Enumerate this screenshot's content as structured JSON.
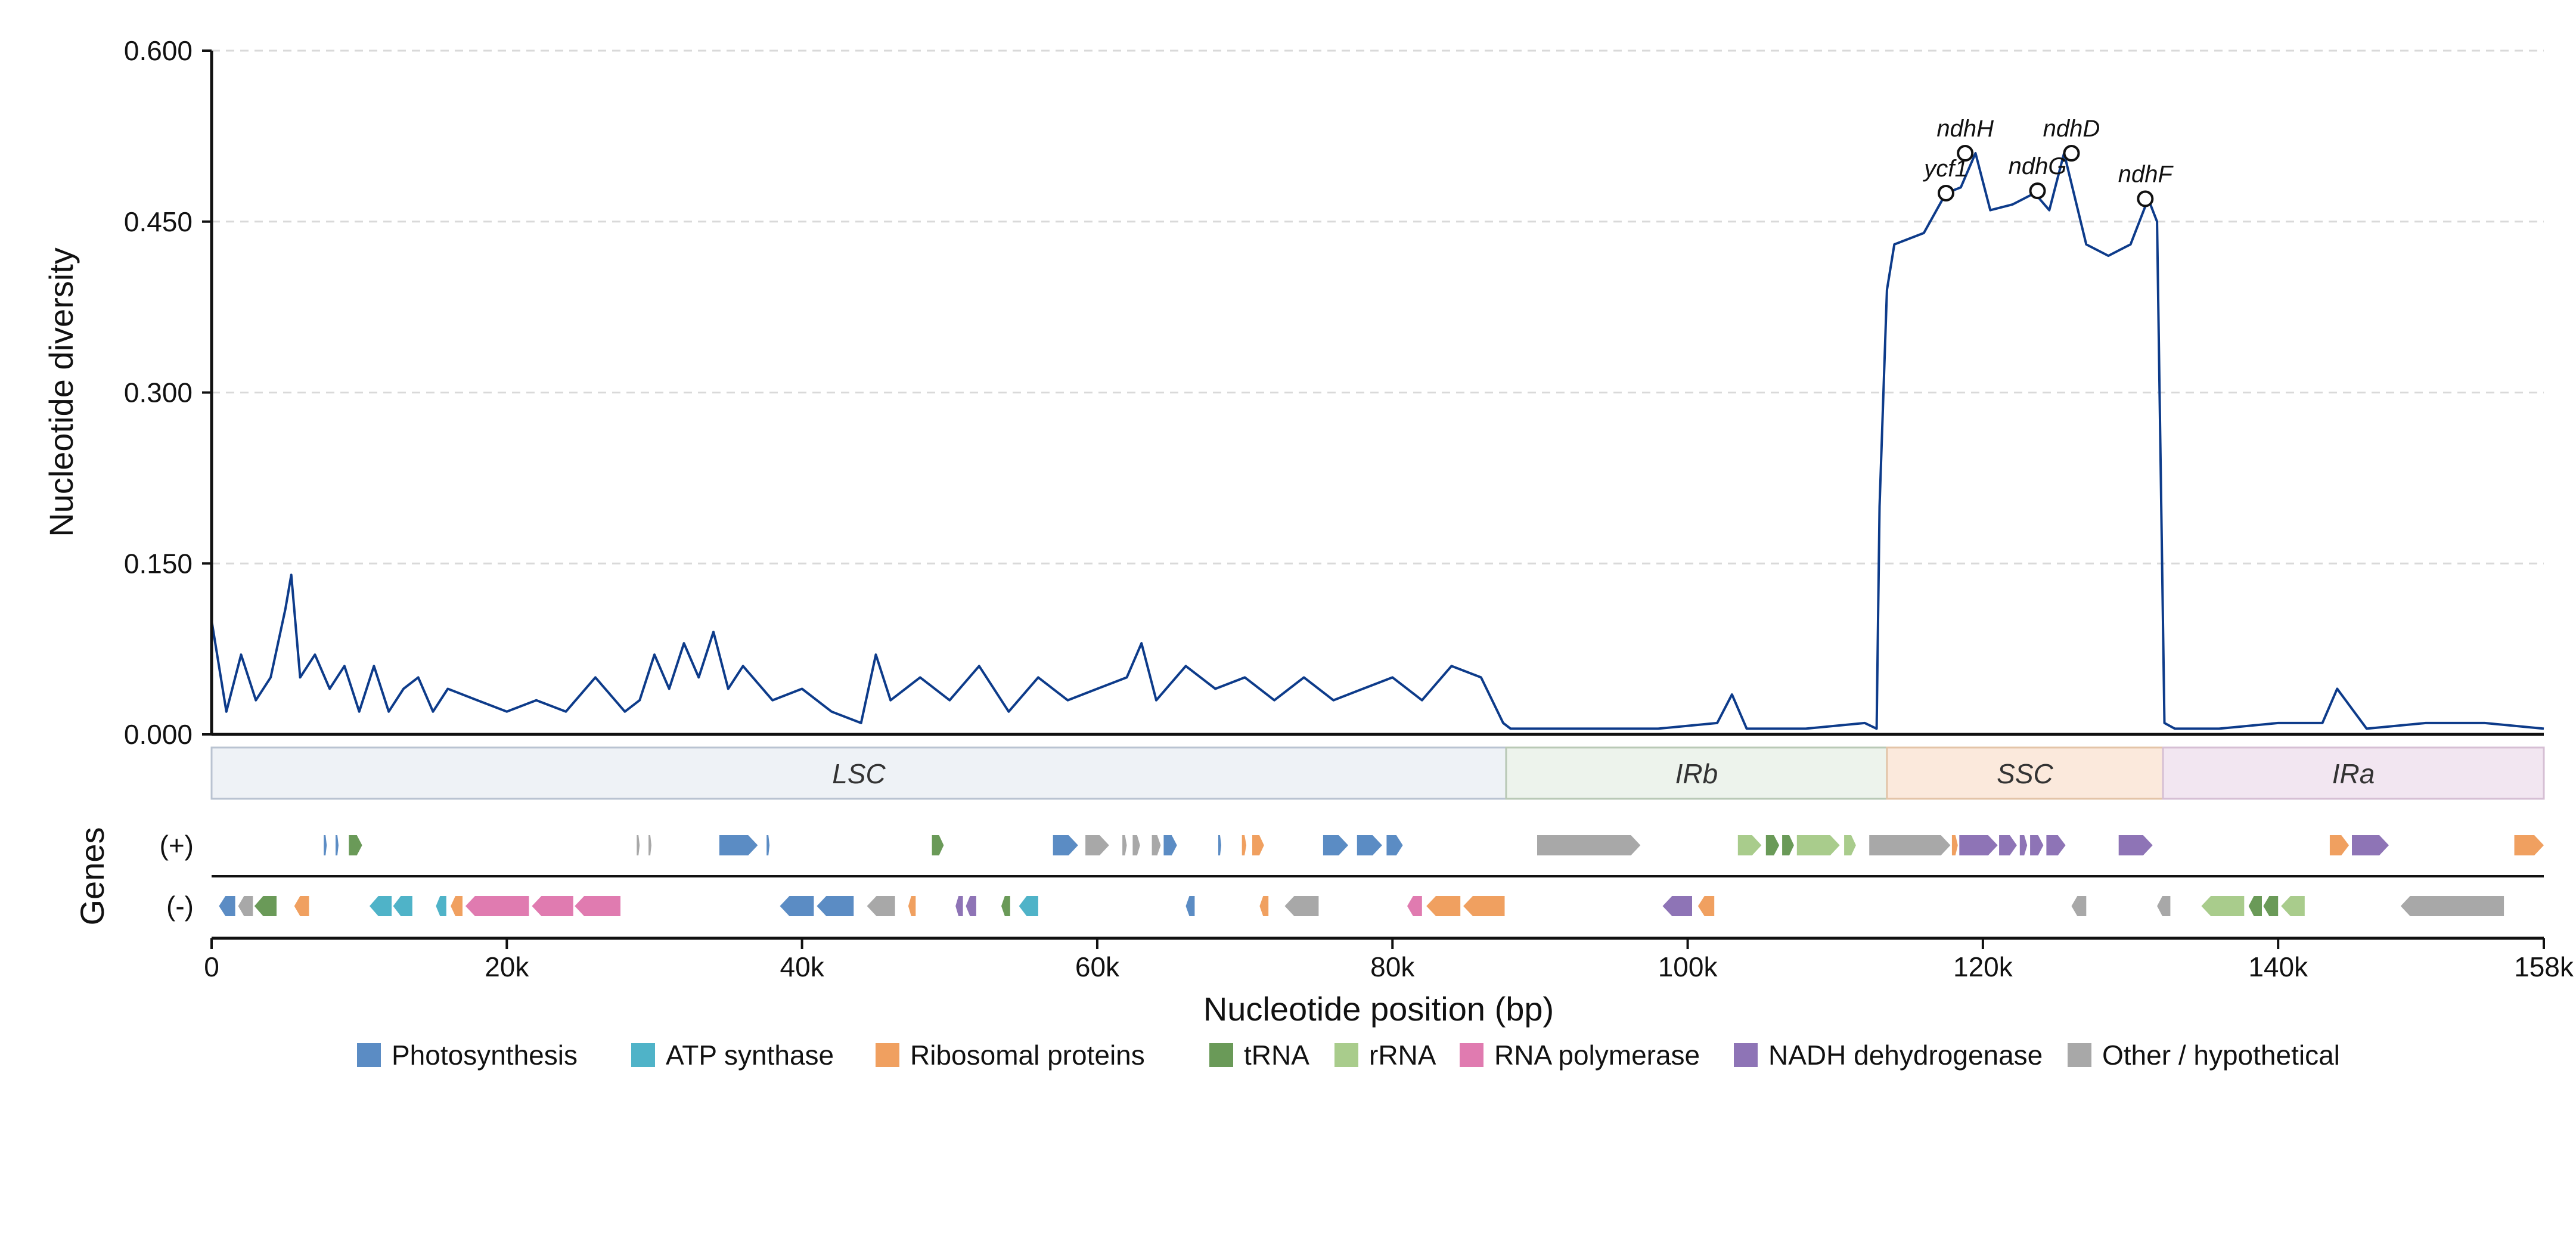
{
  "chart_data": {
    "type": "line",
    "title": "",
    "xlabel": "Nucleotide position (bp)",
    "ylabel": "Nucleotide diversity",
    "genes_label": "Genes",
    "xlim": [
      0,
      158000
    ],
    "ylim": [
      0,
      0.6
    ],
    "grid": true,
    "x_ticks": [
      0,
      20000,
      40000,
      60000,
      80000,
      100000,
      120000,
      140000,
      158000
    ],
    "x_tick_labels": [
      "0",
      "20k",
      "40k",
      "60k",
      "80k",
      "100k",
      "120k",
      "140k",
      "158k"
    ],
    "y_ticks": [
      0,
      0.15,
      0.3,
      0.45,
      0.6
    ],
    "y_tick_labels": [
      "0.000",
      "0.150",
      "0.300",
      "0.450",
      "0.600"
    ],
    "line_color": "#0d3b8a",
    "series": [
      {
        "name": "",
        "x": [
          0,
          1000,
          2000,
          3000,
          4000,
          5000,
          5400,
          6000,
          7000,
          8000,
          9000,
          10000,
          11000,
          12000,
          13000,
          14000,
          15000,
          16000,
          18000,
          20000,
          22000,
          24000,
          26000,
          28000,
          29000,
          30000,
          31000,
          32000,
          33000,
          34000,
          35000,
          36000,
          38000,
          40000,
          42000,
          44000,
          45000,
          46000,
          48000,
          50000,
          52000,
          54000,
          56000,
          58000,
          60000,
          62000,
          63000,
          64000,
          66000,
          68000,
          70000,
          72000,
          74000,
          76000,
          78000,
          80000,
          82000,
          84000,
          86000,
          87500,
          88000,
          90000,
          94000,
          98000,
          102000,
          103000,
          104000,
          108000,
          112000,
          112800,
          113000,
          113500,
          114000,
          116000,
          117500,
          118500,
          119500,
          120500,
          122000,
          123500,
          124500,
          125500,
          127000,
          128500,
          130000,
          131200,
          131800,
          132300,
          133000,
          136000,
          140000,
          143000,
          144000,
          146000,
          150000,
          154000,
          158000
        ],
        "y": [
          0.1,
          0.02,
          0.07,
          0.03,
          0.05,
          0.11,
          0.14,
          0.05,
          0.07,
          0.04,
          0.06,
          0.02,
          0.06,
          0.02,
          0.04,
          0.05,
          0.02,
          0.04,
          0.03,
          0.02,
          0.03,
          0.02,
          0.05,
          0.02,
          0.03,
          0.07,
          0.04,
          0.08,
          0.05,
          0.09,
          0.04,
          0.06,
          0.03,
          0.04,
          0.02,
          0.01,
          0.07,
          0.03,
          0.05,
          0.03,
          0.06,
          0.02,
          0.05,
          0.03,
          0.04,
          0.05,
          0.08,
          0.03,
          0.06,
          0.04,
          0.05,
          0.03,
          0.05,
          0.03,
          0.04,
          0.05,
          0.03,
          0.06,
          0.05,
          0.01,
          0.005,
          0.005,
          0.005,
          0.005,
          0.01,
          0.035,
          0.005,
          0.005,
          0.01,
          0.005,
          0.2,
          0.39,
          0.43,
          0.44,
          0.475,
          0.48,
          0.51,
          0.46,
          0.465,
          0.475,
          0.46,
          0.51,
          0.43,
          0.42,
          0.43,
          0.47,
          0.45,
          0.01,
          0.005,
          0.005,
          0.01,
          0.01,
          0.04,
          0.005,
          0.01,
          0.01,
          0.005
        ]
      }
    ],
    "peaks": [
      {
        "label": "ycf1",
        "x": 117500,
        "y": 0.475
      },
      {
        "label": "ndhH",
        "x": 118800,
        "y": 0.51
      },
      {
        "label": "ndhG",
        "x": 123700,
        "y": 0.477
      },
      {
        "label": "ndhD",
        "x": 126000,
        "y": 0.51
      },
      {
        "label": "ndhF",
        "x": 131000,
        "y": 0.47
      }
    ],
    "regions": [
      {
        "name": "LSC",
        "start": 0,
        "end": 87700,
        "fill": "#eef2f6",
        "stroke": "#b9c3d1"
      },
      {
        "name": "IRb",
        "start": 87700,
        "end": 113500,
        "fill": "#edf3ec",
        "stroke": "#b9c9b6"
      },
      {
        "name": "SSC",
        "start": 113500,
        "end": 132200,
        "fill": "#fbe9dc",
        "stroke": "#e3c4a8"
      },
      {
        "name": "IRa",
        "start": 132200,
        "end": 158000,
        "fill": "#f2e6f1",
        "stroke": "#d6bfd4"
      }
    ],
    "strands": [
      {
        "id": "plus",
        "label": "(+)"
      },
      {
        "id": "minus",
        "label": "(-)"
      }
    ],
    "categories": [
      {
        "name": "Photosynthesis",
        "color": "#5b8cc4"
      },
      {
        "name": "ATP synthase",
        "color": "#4fb3c8"
      },
      {
        "name": "Ribosomal proteins",
        "color": "#f0a060"
      },
      {
        "name": "tRNA",
        "color": "#6a9a58"
      },
      {
        "name": "rRNA",
        "color": "#a9cc8c"
      },
      {
        "name": "RNA polymerase",
        "color": "#e07bb0"
      },
      {
        "name": "NADH dehydrogenase",
        "color": "#8e74b6"
      },
      {
        "name": "Other / hypothetical",
        "color": "#a8a8a8"
      }
    ],
    "genes": [
      {
        "strand": "plus",
        "start": 7600,
        "end": 7800,
        "cat": "Photosynthesis"
      },
      {
        "strand": "plus",
        "start": 8400,
        "end": 8600,
        "cat": "Photosynthesis"
      },
      {
        "strand": "plus",
        "start": 9300,
        "end": 10200,
        "cat": "tRNA"
      },
      {
        "strand": "plus",
        "start": 28800,
        "end": 29000,
        "cat": "Other / hypothetical"
      },
      {
        "strand": "plus",
        "start": 29600,
        "end": 29800,
        "cat": "Other / hypothetical"
      },
      {
        "strand": "plus",
        "start": 34400,
        "end": 37000,
        "cat": "Photosynthesis"
      },
      {
        "strand": "plus",
        "start": 37600,
        "end": 37800,
        "cat": "Photosynthesis"
      },
      {
        "strand": "plus",
        "start": 48800,
        "end": 49600,
        "cat": "tRNA"
      },
      {
        "strand": "plus",
        "start": 57000,
        "end": 58700,
        "cat": "Photosynthesis"
      },
      {
        "strand": "plus",
        "start": 59200,
        "end": 60800,
        "cat": "Other / hypothetical"
      },
      {
        "strand": "plus",
        "start": 61700,
        "end": 62000,
        "cat": "Other / hypothetical"
      },
      {
        "strand": "plus",
        "start": 62400,
        "end": 62900,
        "cat": "Other / hypothetical"
      },
      {
        "strand": "plus",
        "start": 63700,
        "end": 64300,
        "cat": "Other / hypothetical"
      },
      {
        "strand": "plus",
        "start": 64500,
        "end": 65400,
        "cat": "Photosynthesis"
      },
      {
        "strand": "plus",
        "start": 68200,
        "end": 68400,
        "cat": "Photosynthesis"
      },
      {
        "strand": "plus",
        "start": 69800,
        "end": 70100,
        "cat": "Ribosomal proteins"
      },
      {
        "strand": "plus",
        "start": 70500,
        "end": 71300,
        "cat": "Ribosomal proteins"
      },
      {
        "strand": "plus",
        "start": 75300,
        "end": 77000,
        "cat": "Photosynthesis"
      },
      {
        "strand": "plus",
        "start": 77600,
        "end": 79300,
        "cat": "Photosynthesis"
      },
      {
        "strand": "plus",
        "start": 79600,
        "end": 80700,
        "cat": "Photosynthesis"
      },
      {
        "strand": "plus",
        "start": 89800,
        "end": 96800,
        "cat": "Other / hypothetical"
      },
      {
        "strand": "plus",
        "start": 103400,
        "end": 105000,
        "cat": "rRNA"
      },
      {
        "strand": "plus",
        "start": 105300,
        "end": 106200,
        "cat": "tRNA"
      },
      {
        "strand": "plus",
        "start": 106400,
        "end": 107200,
        "cat": "tRNA"
      },
      {
        "strand": "plus",
        "start": 107400,
        "end": 110300,
        "cat": "rRNA"
      },
      {
        "strand": "plus",
        "start": 110600,
        "end": 111400,
        "cat": "rRNA"
      },
      {
        "strand": "plus",
        "start": 112300,
        "end": 117800,
        "cat": "Other / hypothetical"
      },
      {
        "strand": "plus",
        "start": 117900,
        "end": 118300,
        "cat": "Ribosomal proteins"
      },
      {
        "strand": "plus",
        "start": 118400,
        "end": 121000,
        "cat": "NADH dehydrogenase"
      },
      {
        "strand": "plus",
        "start": 121100,
        "end": 122300,
        "cat": "NADH dehydrogenase"
      },
      {
        "strand": "plus",
        "start": 122500,
        "end": 123000,
        "cat": "NADH dehydrogenase"
      },
      {
        "strand": "plus",
        "start": 123200,
        "end": 124100,
        "cat": "NADH dehydrogenase"
      },
      {
        "strand": "plus",
        "start": 124300,
        "end": 125600,
        "cat": "NADH dehydrogenase"
      },
      {
        "strand": "plus",
        "start": 129200,
        "end": 131500,
        "cat": "NADH dehydrogenase"
      },
      {
        "strand": "plus",
        "start": 143500,
        "end": 144800,
        "cat": "Ribosomal proteins"
      },
      {
        "strand": "plus",
        "start": 145000,
        "end": 147500,
        "cat": "NADH dehydrogenase"
      },
      {
        "strand": "plus",
        "start": 156000,
        "end": 158000,
        "cat": "Ribosomal proteins"
      },
      {
        "strand": "minus",
        "start": 500,
        "end": 1600,
        "cat": "Photosynthesis"
      },
      {
        "strand": "minus",
        "start": 1800,
        "end": 2800,
        "cat": "Other / hypothetical"
      },
      {
        "strand": "minus",
        "start": 2900,
        "end": 4400,
        "cat": "tRNA"
      },
      {
        "strand": "minus",
        "start": 5600,
        "end": 6600,
        "cat": "Ribosomal proteins"
      },
      {
        "strand": "minus",
        "start": 10700,
        "end": 12200,
        "cat": "ATP synthase"
      },
      {
        "strand": "minus",
        "start": 12300,
        "end": 13600,
        "cat": "ATP synthase"
      },
      {
        "strand": "minus",
        "start": 15200,
        "end": 15900,
        "cat": "ATP synthase"
      },
      {
        "strand": "minus",
        "start": 16200,
        "end": 17000,
        "cat": "Ribosomal proteins"
      },
      {
        "strand": "minus",
        "start": 17200,
        "end": 21500,
        "cat": "RNA polymerase"
      },
      {
        "strand": "minus",
        "start": 21700,
        "end": 24500,
        "cat": "RNA polymerase"
      },
      {
        "strand": "minus",
        "start": 24600,
        "end": 27700,
        "cat": "RNA polymerase"
      },
      {
        "strand": "minus",
        "start": 38500,
        "end": 40800,
        "cat": "Photosynthesis"
      },
      {
        "strand": "minus",
        "start": 41000,
        "end": 43500,
        "cat": "Photosynthesis"
      },
      {
        "strand": "minus",
        "start": 44400,
        "end": 46300,
        "cat": "Other / hypothetical"
      },
      {
        "strand": "minus",
        "start": 47200,
        "end": 47700,
        "cat": "Ribosomal proteins"
      },
      {
        "strand": "minus",
        "start": 50400,
        "end": 50900,
        "cat": "NADH dehydrogenase"
      },
      {
        "strand": "minus",
        "start": 51100,
        "end": 51800,
        "cat": "NADH dehydrogenase"
      },
      {
        "strand": "minus",
        "start": 53500,
        "end": 54100,
        "cat": "tRNA"
      },
      {
        "strand": "minus",
        "start": 54700,
        "end": 56000,
        "cat": "ATP synthase"
      },
      {
        "strand": "minus",
        "start": 66000,
        "end": 66600,
        "cat": "Photosynthesis"
      },
      {
        "strand": "minus",
        "start": 71000,
        "end": 71600,
        "cat": "Ribosomal proteins"
      },
      {
        "strand": "minus",
        "start": 72700,
        "end": 75000,
        "cat": "Other / hypothetical"
      },
      {
        "strand": "minus",
        "start": 81000,
        "end": 82000,
        "cat": "RNA polymerase"
      },
      {
        "strand": "minus",
        "start": 82300,
        "end": 84600,
        "cat": "Ribosomal proteins"
      },
      {
        "strand": "minus",
        "start": 84800,
        "end": 87600,
        "cat": "Ribosomal proteins"
      },
      {
        "strand": "minus",
        "start": 98300,
        "end": 100300,
        "cat": "NADH dehydrogenase"
      },
      {
        "strand": "minus",
        "start": 100700,
        "end": 101800,
        "cat": "Ribosomal proteins"
      },
      {
        "strand": "minus",
        "start": 126000,
        "end": 127000,
        "cat": "Other / hypothetical"
      },
      {
        "strand": "minus",
        "start": 131800,
        "end": 132700,
        "cat": "Other / hypothetical"
      },
      {
        "strand": "minus",
        "start": 134800,
        "end": 137700,
        "cat": "rRNA"
      },
      {
        "strand": "minus",
        "start": 138000,
        "end": 138900,
        "cat": "tRNA"
      },
      {
        "strand": "minus",
        "start": 139000,
        "end": 140000,
        "cat": "tRNA"
      },
      {
        "strand": "minus",
        "start": 140200,
        "end": 141800,
        "cat": "rRNA"
      },
      {
        "strand": "minus",
        "start": 148300,
        "end": 155300,
        "cat": "Other / hypothetical"
      }
    ]
  }
}
